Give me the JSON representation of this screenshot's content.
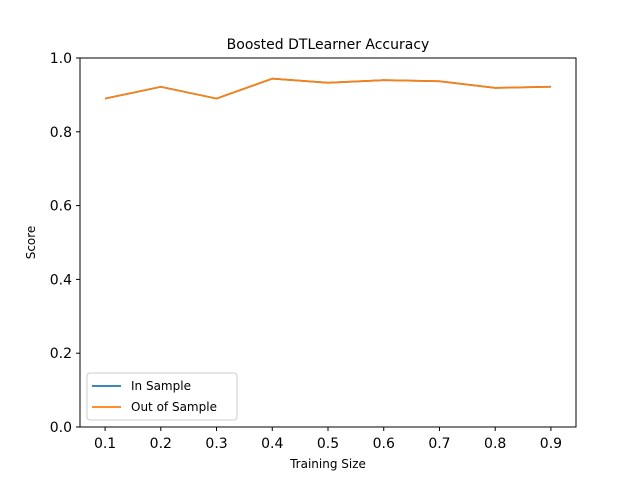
{
  "chart_data": {
    "type": "line",
    "title": "Boosted DTLearner Accuracy",
    "xlabel": "Training Size",
    "ylabel": "Score",
    "x": [
      0.1,
      0.2,
      0.3,
      0.4,
      0.5,
      0.6,
      0.7,
      0.8,
      0.9
    ],
    "xlim": [
      0.055,
      0.945
    ],
    "ylim": [
      0.0,
      1.0
    ],
    "xticks": [
      "0.1",
      "0.2",
      "0.3",
      "0.4",
      "0.5",
      "0.6",
      "0.7",
      "0.8",
      "0.9"
    ],
    "yticks": [
      "0.0",
      "0.2",
      "0.4",
      "0.6",
      "0.8",
      "1.0"
    ],
    "grid": false,
    "legend_position": "lower-left",
    "series": [
      {
        "name": "In Sample",
        "color": "#1f77b4",
        "values": [
          0.89,
          0.922,
          0.89,
          0.944,
          0.933,
          0.94,
          0.937,
          0.919,
          0.922
        ]
      },
      {
        "name": "Out of Sample",
        "color": "#ff7f0e",
        "values": [
          0.89,
          0.922,
          0.89,
          0.944,
          0.933,
          0.94,
          0.937,
          0.919,
          0.922
        ]
      }
    ]
  }
}
